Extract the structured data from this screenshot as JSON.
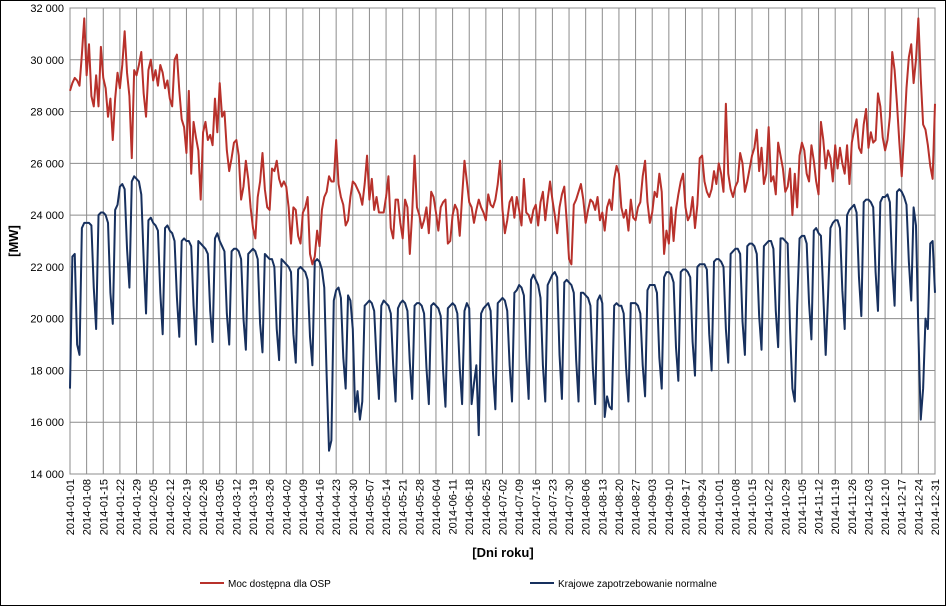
{
  "chart_data": {
    "type": "line",
    "y_label": "[MW]",
    "x_label": "[Dni roku]",
    "ylim": [
      14000,
      32000
    ],
    "yticks": [
      {
        "value": 14000,
        "label": "14 000"
      },
      {
        "value": 16000,
        "label": "16 000"
      },
      {
        "value": 18000,
        "label": "18 000"
      },
      {
        "value": 20000,
        "label": "20 000"
      },
      {
        "value": 22000,
        "label": "22 000"
      },
      {
        "value": 24000,
        "label": "24 000"
      },
      {
        "value": 26000,
        "label": "26 000"
      },
      {
        "value": 28000,
        "label": "28 000"
      },
      {
        "value": 30000,
        "label": "30 000"
      },
      {
        "value": 32000,
        "label": "32 000"
      }
    ],
    "grid": true,
    "legend": "bottom",
    "categories": [
      "2014-01-01",
      null,
      null,
      null,
      null,
      null,
      null,
      "2014-01-08",
      null,
      null,
      null,
      null,
      null,
      null,
      "2014-01-15",
      null,
      null,
      null,
      null,
      null,
      null,
      "2014-01-22",
      null,
      null,
      null,
      null,
      null,
      null,
      "2014-01-29",
      null,
      null,
      null,
      null,
      null,
      null,
      "2014-02-05",
      null,
      null,
      null,
      null,
      null,
      null,
      "2014-02-12",
      null,
      null,
      null,
      null,
      null,
      null,
      "2014-02-19",
      null,
      null,
      null,
      null,
      null,
      null,
      "2014-02-26",
      null,
      null,
      null,
      null,
      null,
      null,
      "2014-03-05",
      null,
      null,
      null,
      null,
      null,
      null,
      "2014-03-12",
      null,
      null,
      null,
      null,
      null,
      null,
      "2014-03-19",
      null,
      null,
      null,
      null,
      null,
      null,
      "2014-03-26",
      null,
      null,
      null,
      null,
      null,
      null,
      "2014-04-02",
      null,
      null,
      null,
      null,
      null,
      null,
      "2014-04-09",
      null,
      null,
      null,
      null,
      null,
      null,
      "2014-04-16",
      null,
      null,
      null,
      null,
      null,
      null,
      "2014-04-23",
      null,
      null,
      null,
      null,
      null,
      null,
      "2014-04-30",
      null,
      null,
      null,
      null,
      null,
      null,
      "2014-05-07",
      null,
      null,
      null,
      null,
      null,
      null,
      "2014-05-14",
      null,
      null,
      null,
      null,
      null,
      null,
      "2014-05-21",
      null,
      null,
      null,
      null,
      null,
      null,
      "2014-05-28",
      null,
      null,
      null,
      null,
      null,
      null,
      "2014-06-04",
      null,
      null,
      null,
      null,
      null,
      null,
      "2014-06-11",
      null,
      null,
      null,
      null,
      null,
      null,
      "2014-06-18",
      null,
      null,
      null,
      null,
      null,
      null,
      "2014-06-25",
      null,
      null,
      null,
      null,
      null,
      null,
      "2014-07-02",
      null,
      null,
      null,
      null,
      null,
      null,
      "2014-07-09",
      null,
      null,
      null,
      null,
      null,
      null,
      "2014-07-16",
      null,
      null,
      null,
      null,
      null,
      null,
      "2014-07-23",
      null,
      null,
      null,
      null,
      null,
      null,
      "2014-07-30",
      null,
      null,
      null,
      null,
      null,
      null,
      "2014-08-06",
      null,
      null,
      null,
      null,
      null,
      null,
      "2014-08-13",
      null,
      null,
      null,
      null,
      null,
      null,
      "2014-08-20",
      null,
      null,
      null,
      null,
      null,
      null,
      "2014-08-27",
      null,
      null,
      null,
      null,
      null,
      null,
      "2014-09-03",
      null,
      null,
      null,
      null,
      null,
      null,
      "2014-09-10",
      null,
      null,
      null,
      null,
      null,
      null,
      "2014-09-17",
      null,
      null,
      null,
      null,
      null,
      null,
      "2014-09-24",
      null,
      null,
      null,
      null,
      null,
      null,
      "2014-10-01",
      null,
      null,
      null,
      null,
      null,
      null,
      "2014-10-08",
      null,
      null,
      null,
      null,
      null,
      null,
      "2014-10-15",
      null,
      null,
      null,
      null,
      null,
      null,
      "2014-10-22",
      null,
      null,
      null,
      null,
      null,
      null,
      "2014-10-29",
      null,
      null,
      null,
      null,
      null,
      null,
      "2014-11-05",
      null,
      null,
      null,
      null,
      null,
      null,
      "2014-11-12",
      null,
      null,
      null,
      null,
      null,
      null,
      "2014-11-19",
      null,
      null,
      null,
      null,
      null,
      null,
      "2014-11-26",
      null,
      null,
      null,
      null,
      null,
      null,
      "2014-12-03",
      null,
      null,
      null,
      null,
      null,
      null,
      "2014-12-10",
      null,
      null,
      null,
      null,
      null,
      null,
      "2014-12-17",
      null,
      null,
      null,
      null,
      null,
      null,
      "2014-12-24",
      null,
      null,
      null,
      null,
      null,
      null,
      "2014-12-31"
    ],
    "series": [
      {
        "name": "Moc dostępna dla OSP",
        "color": "#b8312b",
        "values": [
          28800,
          29100,
          29300,
          29200,
          29000,
          30200,
          31600,
          29400,
          30600,
          28600,
          28200,
          29400,
          28200,
          30500,
          29300,
          28900,
          27800,
          28500,
          26900,
          28500,
          29500,
          28900,
          29800,
          31100,
          29500,
          28600,
          26200,
          29600,
          29400,
          29800,
          30300,
          28700,
          27800,
          29600,
          30000,
          29200,
          29600,
          29000,
          29800,
          29500,
          28900,
          29200,
          28500,
          28200,
          30000,
          30200,
          28800,
          27700,
          27400,
          26400,
          28800,
          25600,
          27600,
          27000,
          26500,
          24600,
          27200,
          27600,
          26900,
          27100,
          26700,
          28500,
          27200,
          29100,
          27800,
          28000,
          26500,
          25700,
          26200,
          26800,
          26900,
          26300,
          24600,
          25100,
          26100,
          25400,
          24300,
          23500,
          23100,
          24700,
          25300,
          26400,
          25000,
          24300,
          24200,
          25800,
          25700,
          26100,
          25400,
          25100,
          25300,
          25100,
          24300,
          22900,
          24300,
          24200,
          23200,
          22900,
          24100,
          24300,
          24700,
          22500,
          22100,
          22400,
          23400,
          22800,
          24200,
          24700,
          24900,
          25500,
          25300,
          25300,
          26900,
          25200,
          24700,
          24400,
          23600,
          23800,
          24700,
          25300,
          25200,
          25000,
          24800,
          24400,
          25200,
          26300,
          24600,
          25400,
          24200,
          24700,
          24100,
          24100,
          24100,
          24700,
          25500,
          23500,
          23100,
          24600,
          24600,
          23700,
          23100,
          24600,
          24300,
          22500,
          24100,
          26300,
          24300,
          24000,
          23500,
          23800,
          24300,
          23300,
          24900,
          24700,
          24100,
          23400,
          24300,
          24500,
          24600,
          22900,
          23000,
          24000,
          24400,
          24200,
          23200,
          24700,
          26100,
          25300,
          24500,
          24300,
          23700,
          24200,
          24600,
          24300,
          24100,
          23800,
          24800,
          24400,
          24300,
          24600,
          25200,
          26100,
          24200,
          23300,
          23800,
          24500,
          24700,
          23900,
          24700,
          24200,
          23600,
          25400,
          24100,
          24000,
          23700,
          24200,
          24400,
          23600,
          24500,
          24900,
          23800,
          24600,
          25300,
          24600,
          24000,
          23300,
          24300,
          24800,
          25100,
          23800,
          22300,
          22100,
          24400,
          24600,
          24900,
          25200,
          24600,
          23700,
          24200,
          24600,
          24500,
          24200,
          24700,
          23800,
          24100,
          23400,
          24300,
          24600,
          24200,
          25400,
          25900,
          25600,
          24300,
          23900,
          24200,
          23400,
          24600,
          23900,
          23800,
          24300,
          24500,
          25500,
          26100,
          24500,
          23700,
          24100,
          24900,
          24700,
          25600,
          24900,
          22500,
          23400,
          22900,
          24300,
          23000,
          24200,
          24800,
          25300,
          25600,
          24300,
          23800,
          24000,
          24700,
          23500,
          24400,
          26200,
          26300,
          25300,
          24900,
          24700,
          25000,
          25700,
          25200,
          26000,
          25600,
          24900,
          28300,
          25600,
          25000,
          24700,
          25100,
          25300,
          26400,
          26000,
          24900,
          25300,
          25800,
          26300,
          26600,
          27300,
          25700,
          26600,
          25200,
          25600,
          27400,
          25300,
          25500,
          24800,
          26800,
          26300,
          25800,
          24900,
          25100,
          25800,
          24000,
          25600,
          24300,
          26300,
          26800,
          26500,
          25600,
          25300,
          26700,
          26100,
          25300,
          24800,
          27600,
          26900,
          25800,
          26500,
          26200,
          25300,
          26700,
          25800,
          26600,
          26000,
          25600,
          26700,
          25200,
          26800,
          27300,
          27700,
          26600,
          26400,
          27500,
          28100,
          26600,
          27200,
          26800,
          26900,
          28700,
          28200,
          27000,
          26500,
          26900,
          27800,
          30300,
          29600,
          28300,
          26800,
          25500,
          27100,
          28900,
          30100,
          30600,
          29100,
          30000,
          31600,
          29300,
          27500,
          27300,
          26700,
          25900,
          25400,
          28300
        ]
      },
      {
        "name": "Krajowe zapotrzebowanie normalne",
        "color": "#17305e",
        "values": [
          17300,
          22400,
          22500,
          19000,
          18600,
          23500,
          23700,
          23700,
          23700,
          23600,
          21200,
          19600,
          24000,
          24100,
          24100,
          24000,
          23700,
          21000,
          19800,
          24200,
          24400,
          25100,
          25200,
          25000,
          22700,
          21200,
          25300,
          25500,
          25400,
          25300,
          24800,
          22300,
          20200,
          23800,
          23900,
          23700,
          23600,
          23400,
          21000,
          19400,
          23500,
          23600,
          23400,
          23300,
          23000,
          20800,
          19300,
          23000,
          23100,
          23000,
          23000,
          22800,
          20500,
          19000,
          23000,
          22900,
          22800,
          22700,
          22500,
          20300,
          19100,
          23100,
          23300,
          23000,
          22800,
          22600,
          20200,
          19000,
          22600,
          22700,
          22700,
          22600,
          22300,
          20000,
          18800,
          22500,
          22600,
          22700,
          22600,
          22300,
          19800,
          18700,
          22500,
          22400,
          22300,
          22300,
          22000,
          19600,
          18400,
          22300,
          22200,
          22100,
          22000,
          21800,
          19400,
          18300,
          21900,
          22000,
          21900,
          21800,
          21500,
          19300,
          18200,
          22200,
          22300,
          22200,
          21900,
          21200,
          17800,
          14900,
          15300,
          20700,
          21100,
          21200,
          20800,
          18500,
          17300,
          20900,
          20700,
          19600,
          16400,
          17200,
          16100,
          16800,
          20500,
          20600,
          20700,
          20600,
          20300,
          18400,
          16900,
          20500,
          20700,
          20600,
          20500,
          20200,
          18200,
          16800,
          20400,
          20600,
          20700,
          20600,
          20300,
          18300,
          16900,
          20500,
          20600,
          20600,
          20500,
          20200,
          18100,
          16700,
          20500,
          20600,
          20500,
          20400,
          20100,
          18000,
          16600,
          20400,
          20500,
          20600,
          20500,
          20200,
          18100,
          16700,
          20300,
          20600,
          20400,
          16700,
          17500,
          18200,
          15500,
          20200,
          20400,
          20500,
          20600,
          20300,
          17900,
          16500,
          20600,
          20700,
          20800,
          20700,
          20300,
          18200,
          16800,
          21000,
          21100,
          21300,
          21200,
          20900,
          18500,
          16900,
          21500,
          21700,
          21500,
          21300,
          20800,
          18200,
          16800,
          21300,
          21500,
          21700,
          21800,
          21600,
          18600,
          16900,
          21400,
          21500,
          21400,
          21300,
          21000,
          18400,
          16800,
          21000,
          21000,
          20900,
          20800,
          20500,
          18100,
          16700,
          20700,
          20900,
          20600,
          16200,
          17000,
          16600,
          16500,
          20500,
          20600,
          20500,
          20500,
          20200,
          18100,
          16800,
          20600,
          20600,
          20600,
          20500,
          20200,
          18200,
          17000,
          21100,
          21300,
          21300,
          21300,
          21000,
          18500,
          17300,
          21600,
          21800,
          21800,
          21700,
          21400,
          18900,
          17600,
          21800,
          21900,
          21900,
          21800,
          21600,
          19100,
          17800,
          22000,
          22100,
          22100,
          22100,
          21900,
          19400,
          18000,
          22200,
          22300,
          22300,
          22200,
          22000,
          19600,
          18300,
          22500,
          22600,
          22700,
          22700,
          22500,
          19900,
          18600,
          22800,
          22900,
          22900,
          22800,
          22500,
          20100,
          18800,
          22800,
          22900,
          23000,
          23000,
          22700,
          20300,
          18900,
          23100,
          23100,
          23000,
          22900,
          19600,
          17300,
          16800,
          20500,
          23100,
          23200,
          23200,
          22900,
          20600,
          19200,
          23400,
          23500,
          23300,
          23200,
          20900,
          18600,
          20900,
          23500,
          23700,
          23800,
          23800,
          23500,
          21100,
          19600,
          24000,
          24200,
          24300,
          24400,
          24100,
          21600,
          20100,
          24500,
          24600,
          24600,
          24500,
          24300,
          21800,
          20300,
          24500,
          24700,
          24700,
          24800,
          24500,
          22000,
          20500,
          24900,
          25000,
          24900,
          24700,
          24400,
          22200,
          20700,
          24300,
          23600,
          19500,
          16100,
          17300,
          20000,
          19600,
          22900,
          23000,
          21000
        ]
      }
    ]
  }
}
